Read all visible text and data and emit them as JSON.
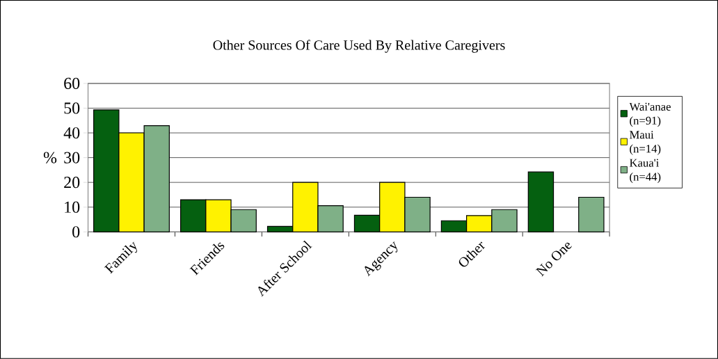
{
  "chart_data": {
    "type": "bar",
    "title": "Other Sources Of Care Used By Relative Caregivers",
    "ylabel": "%",
    "categories": [
      "Family",
      "Friends",
      "After School",
      "Agency",
      "Other",
      "No One"
    ],
    "series": [
      {
        "name": "Wai'anae (n=91)",
        "color": "#056010",
        "values": [
          49.3,
          13,
          2.2,
          6.7,
          4.5,
          24.2
        ]
      },
      {
        "name": "Maui (n=14)",
        "color": "#fff200",
        "values": [
          40,
          13,
          20,
          20,
          6.6,
          null
        ]
      },
      {
        "name": "Kaua'i (n=44)",
        "color": "#7fb087",
        "values": [
          42.9,
          9,
          10.6,
          14,
          9,
          14
        ]
      }
    ],
    "ylim": [
      0,
      60
    ],
    "yticks": [
      0,
      10,
      20,
      30,
      40,
      50,
      60
    ],
    "grid": "y",
    "legend": "right"
  }
}
